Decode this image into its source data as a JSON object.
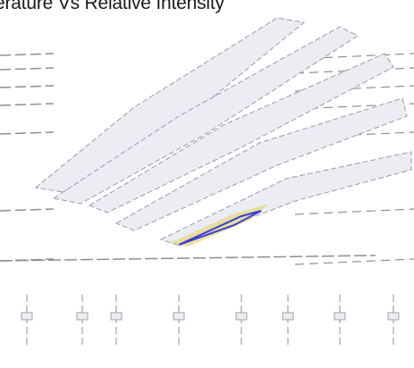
{
  "chart_data": {
    "type": "surface",
    "title": "erature Vs Relative Intensity",
    "colors": {
      "surface_fill": "#ececf3",
      "surface_edge": "#9a9aa8",
      "grid_line": "#8f8f8f",
      "peak_blue": "#3a3fd6",
      "peak_yellow": "#e8d98a",
      "background": "#ffffff"
    }
  }
}
